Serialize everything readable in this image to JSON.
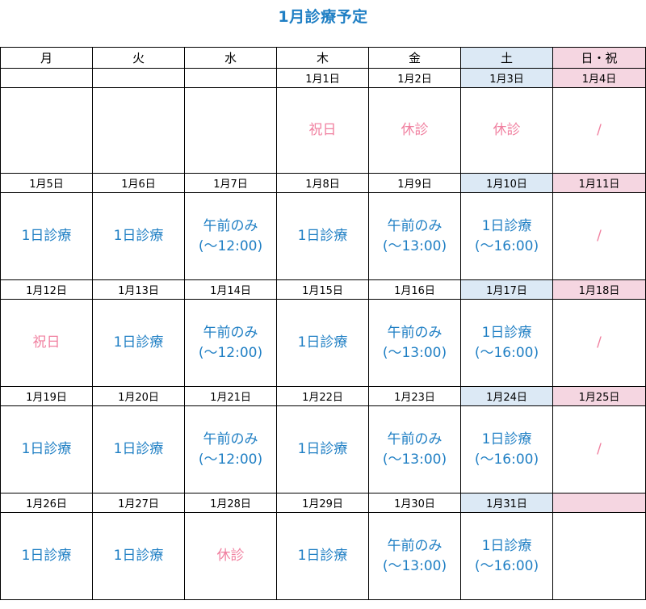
{
  "title": "1月診療予定",
  "colors": {
    "blue": "#1f7fc4",
    "pink": "#f07f9f",
    "sat_bg": "#dce9f5",
    "sun_bg": "#f5d6e1"
  },
  "headers": [
    "月",
    "火",
    "水",
    "木",
    "金",
    "土",
    "日・祝"
  ],
  "weeks": [
    {
      "dates": [
        "",
        "",
        "",
        "1月1日",
        "1月2日",
        "1月3日",
        "1月4日"
      ],
      "cells": [
        "",
        "",
        "",
        "祝日",
        "休診",
        "休診",
        "/"
      ]
    },
    {
      "dates": [
        "1月5日",
        "1月6日",
        "1月7日",
        "1月8日",
        "1月9日",
        "1月10日",
        "1月11日"
      ],
      "cells": [
        "1日診療",
        "1日診療",
        "午前のみ\n(～12:00)",
        "1日診療",
        "午前のみ\n(～13:00)",
        "1日診療\n(～16:00)",
        "/"
      ]
    },
    {
      "dates": [
        "1月12日",
        "1月13日",
        "1月14日",
        "1月15日",
        "1月16日",
        "1月17日",
        "1月18日"
      ],
      "cells": [
        "祝日",
        "1日診療",
        "午前のみ\n(～12:00)",
        "1日診療",
        "午前のみ\n(～13:00)",
        "1日診療\n(～16:00)",
        "/"
      ]
    },
    {
      "dates": [
        "1月19日",
        "1月20日",
        "1月21日",
        "1月22日",
        "1月23日",
        "1月24日",
        "1月25日"
      ],
      "cells": [
        "1日診療",
        "1日診療",
        "午前のみ\n(～12:00)",
        "1日診療",
        "午前のみ\n(～13:00)",
        "1日診療\n(～16:00)",
        "/"
      ]
    },
    {
      "dates": [
        "1月26日",
        "1月27日",
        "1月28日",
        "1月29日",
        "1月30日",
        "1月31日",
        ""
      ],
      "cells": [
        "1日診療",
        "1日診療",
        "休診",
        "1日診療",
        "午前のみ\n(～13:00)",
        "1日診療\n(～16:00)",
        ""
      ]
    }
  ]
}
